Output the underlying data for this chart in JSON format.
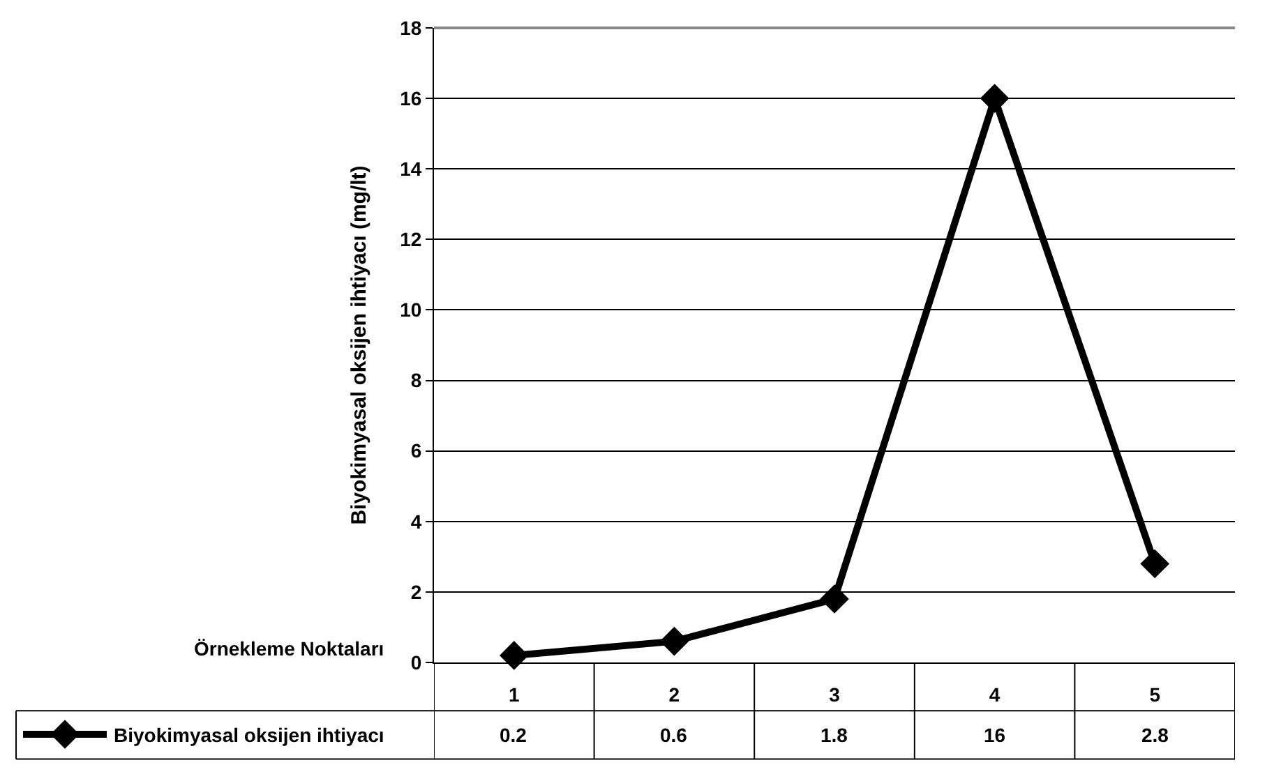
{
  "chart_data": {
    "type": "line",
    "xlabel": "Örnekleme Noktaları",
    "ylabel": "Biyokimyasal oksijen ihtiyacı (mg/lt)",
    "categories": [
      "1",
      "2",
      "3",
      "4",
      "5"
    ],
    "series": [
      {
        "name": "Biyokimyasal oksijen ihtiyacı",
        "color": "#000000",
        "values": [
          0.2,
          0.6,
          1.8,
          16,
          2.8
        ]
      }
    ],
    "ylim": [
      0,
      18
    ],
    "yticks": [
      0,
      2,
      4,
      6,
      8,
      10,
      12,
      14,
      16,
      18
    ],
    "grid": "y",
    "legend": "bottom left",
    "marker": "diamond",
    "line_style": "solid",
    "data_labels": true
  }
}
